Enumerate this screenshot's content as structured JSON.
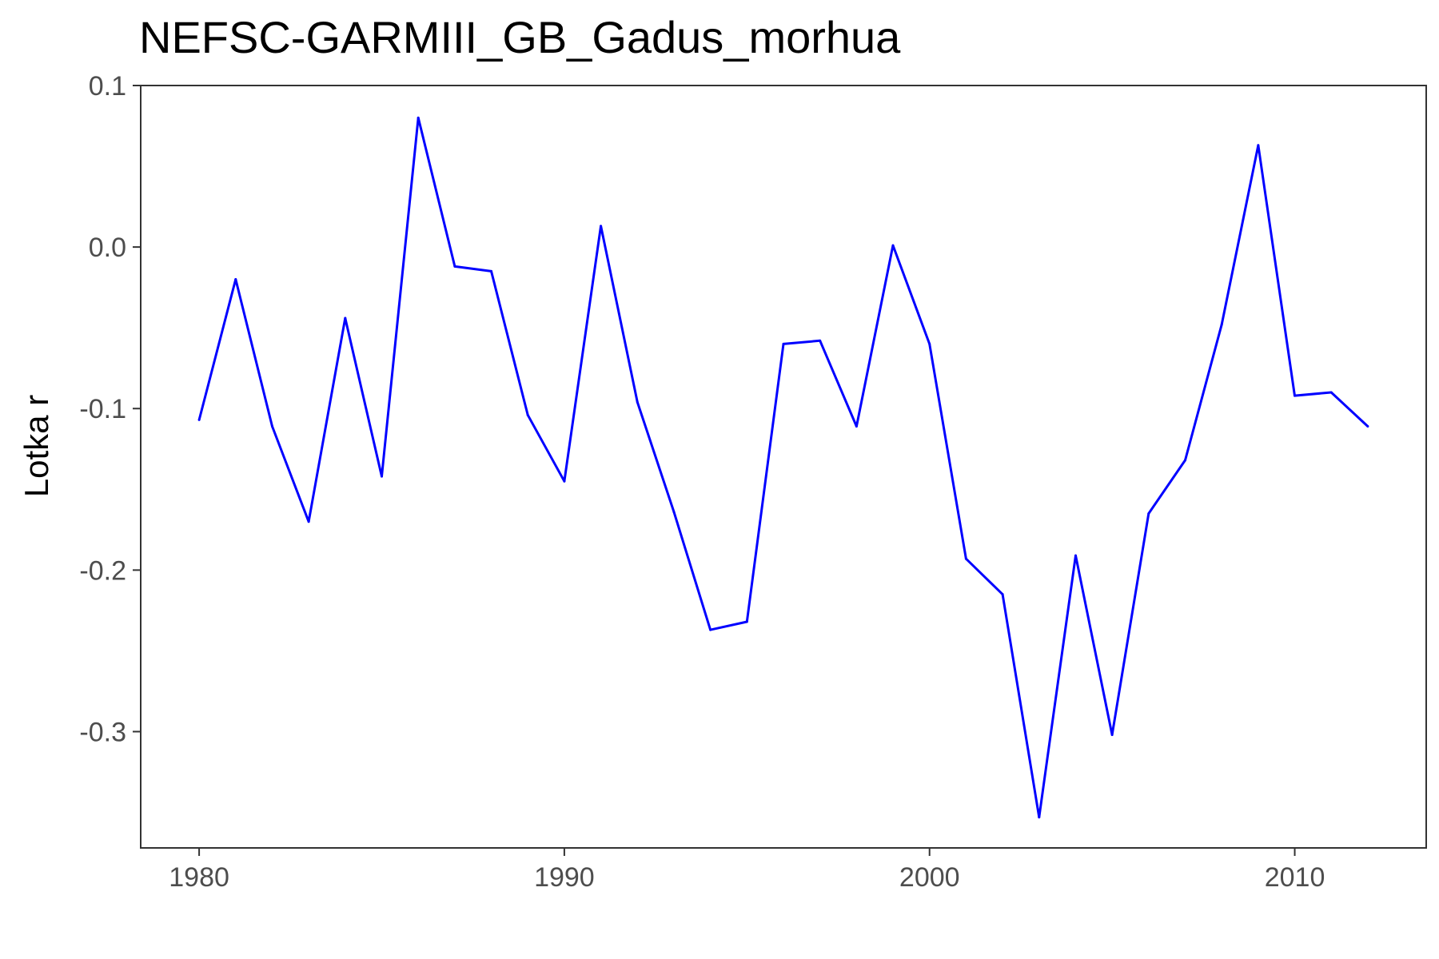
{
  "chart_data": {
    "type": "line",
    "title": "NEFSC-GARMIII_GB_Gadus_morhua",
    "xlabel": "",
    "ylabel": "Lotka r",
    "xlim": [
      1978.4,
      2013.6
    ],
    "ylim": [
      -0.372,
      0.1
    ],
    "x_ticks": [
      1980,
      1990,
      2000,
      2010
    ],
    "x_tick_labels": [
      "1980",
      "1990",
      "2000",
      "2010"
    ],
    "y_ticks": [
      -0.3,
      -0.2,
      -0.1,
      0.0,
      0.1
    ],
    "y_tick_labels": [
      "-0.3",
      "-0.2",
      "-0.1",
      "0.0",
      "0.1"
    ],
    "grid": false,
    "series": [
      {
        "color": "#0000ff",
        "x": [
          1980,
          1981,
          1982,
          1983,
          1984,
          1985,
          1986,
          1987,
          1988,
          1989,
          1990,
          1991,
          1992,
          1993,
          1994,
          1995,
          1996,
          1997,
          1998,
          1999,
          2000,
          2001,
          2002,
          2003,
          2004,
          2005,
          2006,
          2007,
          2008,
          2009,
          2010,
          2011,
          2012
        ],
        "y": [
          -0.107,
          -0.02,
          -0.111,
          -0.17,
          -0.044,
          -0.142,
          0.08,
          -0.012,
          -0.015,
          -0.104,
          -0.145,
          0.013,
          -0.096,
          -0.164,
          -0.237,
          -0.232,
          -0.06,
          -0.058,
          -0.111,
          0.001,
          -0.06,
          -0.193,
          -0.215,
          -0.353,
          -0.191,
          -0.302,
          -0.165,
          -0.132,
          -0.048,
          0.063,
          -0.092,
          -0.09,
          -0.111
        ]
      }
    ]
  }
}
